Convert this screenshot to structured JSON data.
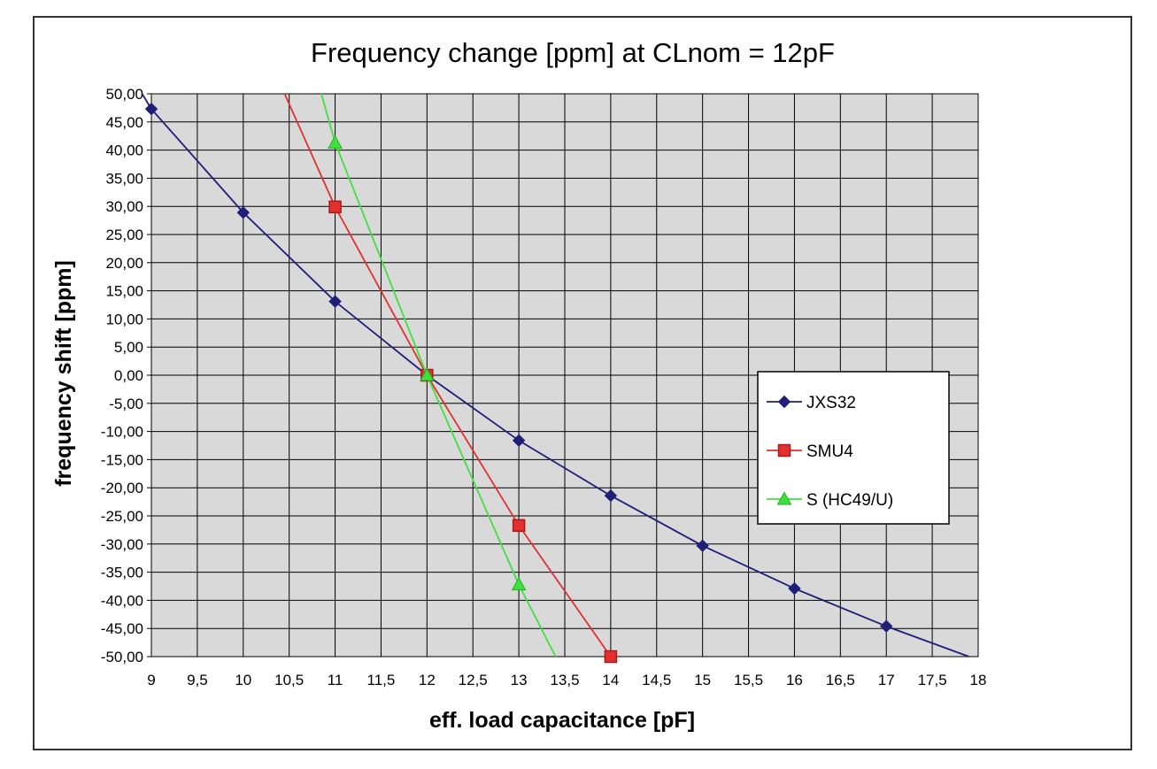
{
  "chart_data": {
    "type": "line",
    "title": "Frequency change [ppm] at CLnom = 12pF",
    "xlabel": "eff. load capacitance [pF]",
    "ylabel": "frequency shift  [ppm]",
    "xlim": [
      9,
      18
    ],
    "ylim": [
      -50,
      50
    ],
    "xticks": [
      "9",
      "9,5",
      "10",
      "10,5",
      "11",
      "11,5",
      "12",
      "12,5",
      "13",
      "13,5",
      "14",
      "14,5",
      "15",
      "15,5",
      "16",
      "16,5",
      "17",
      "17,5",
      "18"
    ],
    "yticks": [
      "50,00",
      "45,00",
      "40,00",
      "35,00",
      "30,00",
      "25,00",
      "20,00",
      "15,00",
      "10,00",
      "5,00",
      "0,00",
      "-5,00",
      "-10,00",
      "-15,00",
      "-20,00",
      "-25,00",
      "-30,00",
      "-35,00",
      "-40,00",
      "-45,00",
      "-50,00"
    ],
    "grid": true,
    "legend_position": "right-middle",
    "series": [
      {
        "name": "JXS32",
        "color": "#1f1f7a",
        "marker": "diamond",
        "points": [
          [
            9,
            47.3
          ],
          [
            10,
            28.9
          ],
          [
            11,
            13.1
          ],
          [
            12,
            0
          ],
          [
            13,
            -11.6
          ],
          [
            14,
            -21.4
          ],
          [
            15,
            -30.3
          ],
          [
            16,
            -37.9
          ],
          [
            17,
            -44.6
          ]
        ],
        "line": [
          [
            8.9,
            50
          ],
          [
            9,
            47.3
          ],
          [
            10,
            28.9
          ],
          [
            11,
            13.1
          ],
          [
            12,
            0
          ],
          [
            13,
            -11.6
          ],
          [
            14,
            -21.4
          ],
          [
            15,
            -30.3
          ],
          [
            16,
            -37.9
          ],
          [
            17,
            -44.6
          ],
          [
            17.9,
            -50
          ]
        ]
      },
      {
        "name": "SMU4",
        "color": "#e03030",
        "marker": "square",
        "points": [
          [
            11,
            29.9
          ],
          [
            12,
            0
          ],
          [
            13,
            -26.7
          ],
          [
            14,
            -50
          ]
        ],
        "line": [
          [
            10.45,
            50
          ],
          [
            11,
            29.9
          ],
          [
            12,
            0
          ],
          [
            13,
            -26.7
          ],
          [
            14,
            -50
          ]
        ]
      },
      {
        "name": "S (HC49/U)",
        "color": "#40e040",
        "marker": "triangle",
        "points": [
          [
            11,
            41.3
          ],
          [
            12,
            0
          ],
          [
            13,
            -37.2
          ]
        ],
        "line": [
          [
            10.85,
            50
          ],
          [
            11,
            41.3
          ],
          [
            12,
            0
          ],
          [
            13,
            -37.2
          ],
          [
            13.4,
            -50
          ]
        ]
      }
    ]
  }
}
